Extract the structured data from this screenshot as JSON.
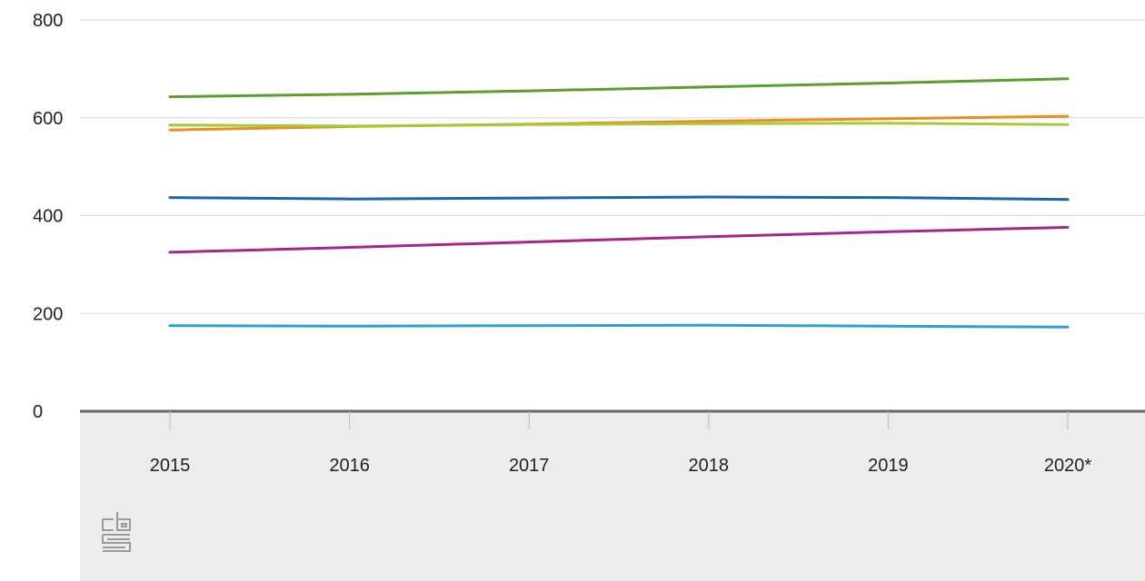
{
  "chart_data": {
    "type": "line",
    "categories": [
      "2015",
      "2016",
      "2017",
      "2018",
      "2019",
      "2020*"
    ],
    "ylim": [
      0,
      800
    ],
    "yticks": [
      0,
      200,
      400,
      600,
      800
    ],
    "grid": true,
    "series": [
      {
        "values": [
          643,
          648,
          655,
          663,
          671,
          680
        ],
        "color": "#5a9e2f"
      },
      {
        "values": [
          575,
          582,
          587,
          593,
          598,
          603
        ],
        "color": "#ee8b1f"
      },
      {
        "values": [
          585,
          583,
          586,
          588,
          589,
          586
        ],
        "color": "#a8c83a"
      },
      {
        "values": [
          437,
          434,
          436,
          438,
          437,
          433
        ],
        "color": "#1e62ad"
      },
      {
        "values": [
          325,
          335,
          346,
          357,
          367,
          376
        ],
        "color": "#a6268a"
      },
      {
        "values": [
          175,
          174,
          175,
          176,
          174,
          172
        ],
        "color": "#2b9fd6"
      }
    ]
  },
  "colors": {
    "grid": "#d7d7d7",
    "axis": "#666666",
    "footer_background": "#ececec",
    "logo": "#9a9a9a"
  },
  "logo": {
    "icon": "cbs-logo-icon"
  }
}
